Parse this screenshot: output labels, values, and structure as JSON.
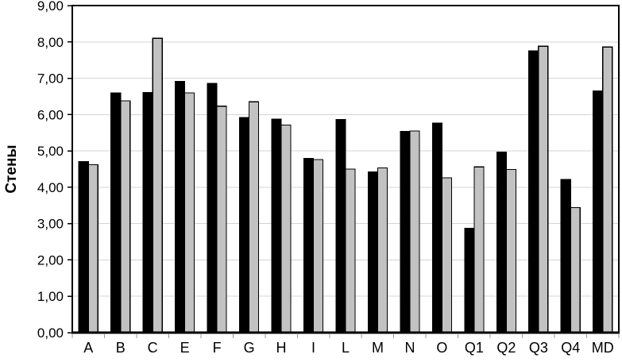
{
  "chart_data": {
    "type": "bar",
    "title": "",
    "xlabel": "",
    "ylabel": "Стены",
    "ylim": [
      0,
      9
    ],
    "ytick_step": 1,
    "ytick_labels": [
      "0,00",
      "1,00",
      "2,00",
      "3,00",
      "4,00",
      "5,00",
      "6,00",
      "7,00",
      "8,00",
      "9,00"
    ],
    "grid": true,
    "legend_position": "none",
    "categories": [
      "A",
      "B",
      "C",
      "E",
      "F",
      "G",
      "H",
      "I",
      "L",
      "M",
      "N",
      "O",
      "Q1",
      "Q2",
      "Q3",
      "Q4",
      "MD"
    ],
    "series": [
      {
        "name": "series-1-black",
        "color": "#000000",
        "values": [
          4.7,
          6.59,
          6.61,
          6.91,
          6.86,
          5.92,
          5.87,
          4.79,
          5.86,
          4.42,
          5.53,
          5.77,
          2.87,
          4.97,
          7.75,
          4.21,
          6.65
        ]
      },
      {
        "name": "series-2-gray",
        "color": "#c2c2c2",
        "values": [
          4.62,
          6.38,
          8.1,
          6.6,
          6.23,
          6.35,
          5.71,
          4.76,
          4.5,
          4.53,
          5.55,
          4.26,
          4.56,
          4.49,
          7.88,
          3.44,
          7.86
        ]
      }
    ],
    "colors": {
      "plot_border": "#000000",
      "gridline": "#d4d4d4",
      "tick": "#9a9a9a",
      "background": "#ffffff"
    }
  }
}
